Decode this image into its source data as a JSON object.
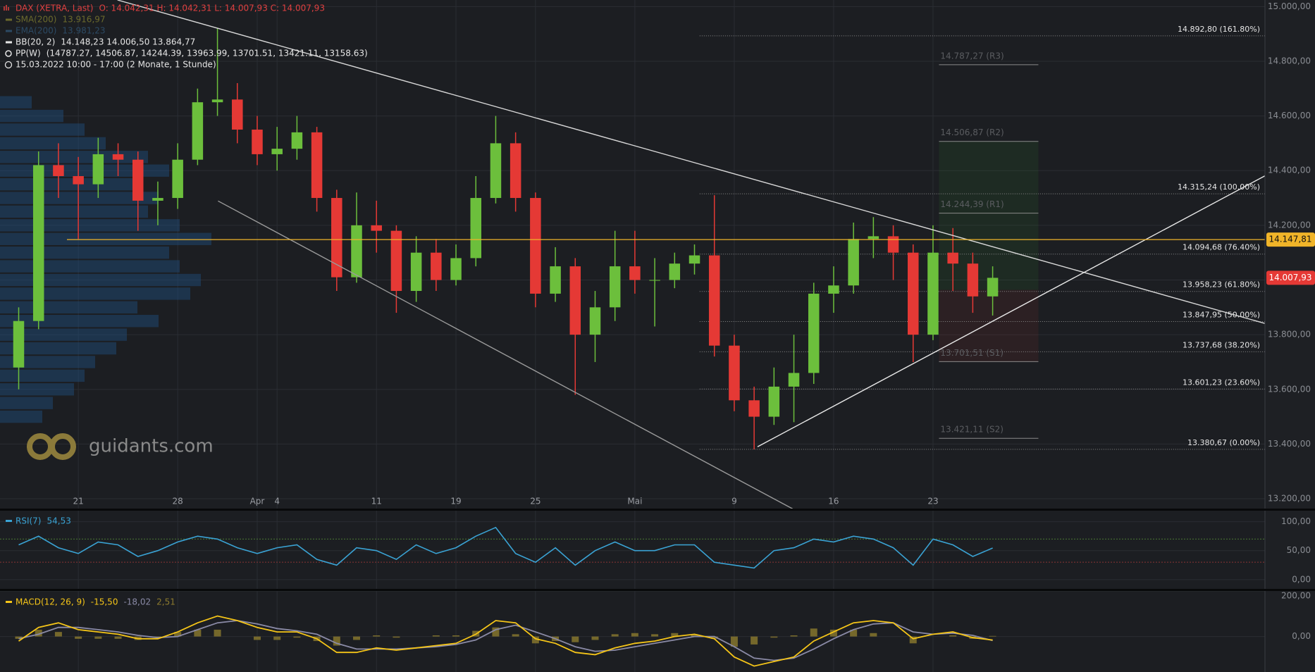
{
  "chart_data": [
    {
      "type": "candlestick",
      "title": "DAX (XETRA, Last)",
      "ohlc_label": "O: 14.042,31  H: 14.042,31  L: 14.007,93  C: 14.007,93",
      "legend": [
        {
          "name": "SMA(200)",
          "value": "13.916,97",
          "color": "#6b6a2c"
        },
        {
          "name": "EMA(200)",
          "value": "13.981,23",
          "color": "#2c4a64"
        },
        {
          "name": "BB(20, 2)",
          "value": "14.148,23  14.006,50  13.864,77",
          "color": "#e6e6e6"
        },
        {
          "name": "PP(W)",
          "value": "(14787.27, 14506.87, 14244.39, 13963.99, 13701.51, 13421.11, 13158.63)",
          "color": "#e6e6e6"
        }
      ],
      "info": "15.03.2022 10:00 - 17:00   (2 Monate, 1 Stunde)",
      "watermark": "guidants.com",
      "x": [
        -3,
        -2,
        -1,
        0,
        1,
        2,
        3,
        4,
        5,
        6,
        7,
        8,
        9,
        10,
        11,
        12,
        13,
        14,
        15,
        16,
        17,
        18,
        19,
        20,
        21,
        22,
        23,
        24,
        25,
        26,
        27,
        28,
        29,
        30,
        31,
        32,
        33,
        34,
        35,
        36,
        37,
        38,
        39,
        40,
        41,
        42,
        43,
        44,
        45,
        46
      ],
      "open": [
        13680,
        13850,
        14420,
        14380,
        14350,
        14460,
        14440,
        14290,
        14300,
        14440,
        14650,
        14660,
        14550,
        14460,
        14480,
        14540,
        14300,
        14010,
        14200,
        14180,
        13960,
        14100,
        14000,
        14080,
        14300,
        14500,
        14300,
        13950,
        14050,
        13800,
        13900,
        14050,
        14000,
        14000,
        14060,
        14090,
        13760,
        13560,
        13500,
        13610,
        13660,
        13950,
        13980,
        14150,
        14160,
        14100,
        13800,
        14100,
        14060,
        13940
      ],
      "high": [
        13900,
        14470,
        14500,
        14450,
        14520,
        14500,
        14470,
        14360,
        14500,
        14700,
        14920,
        14720,
        14600,
        14560,
        14600,
        14560,
        14330,
        14320,
        14290,
        14200,
        14160,
        14150,
        14130,
        14380,
        14600,
        14540,
        14320,
        14120,
        14080,
        13960,
        14180,
        14180,
        14080,
        14100,
        14130,
        14310,
        13800,
        13610,
        13680,
        13800,
        13990,
        14050,
        14210,
        14230,
        14200,
        14130,
        14200,
        14190,
        14100,
        14050
      ],
      "low": [
        13600,
        13820,
        14300,
        14150,
        14300,
        14380,
        14180,
        14200,
        14260,
        14420,
        14600,
        14500,
        14420,
        14400,
        14440,
        14250,
        13960,
        13990,
        14100,
        13880,
        13920,
        13960,
        13980,
        14050,
        14280,
        14250,
        13900,
        13920,
        13580,
        13700,
        13850,
        13950,
        13830,
        13970,
        14020,
        13720,
        13520,
        13380.67,
        13470,
        13480,
        13620,
        13880,
        13950,
        14080,
        14000,
        13700,
        13780,
        13960,
        13880,
        13870
      ],
      "close": [
        13850,
        14420,
        14380,
        14350,
        14460,
        14440,
        14290,
        14300,
        14440,
        14650,
        14660,
        14550,
        14460,
        14480,
        14540,
        14300,
        14010,
        14200,
        14180,
        13960,
        14100,
        14000,
        14080,
        14300,
        14500,
        14300,
        13950,
        14050,
        13800,
        13900,
        14050,
        14000,
        14000,
        14060,
        14090,
        13760,
        13560,
        13500,
        13610,
        13660,
        13950,
        13980,
        14150,
        14160,
        14100,
        13800,
        14100,
        14060,
        13940,
        14007.93
      ],
      "up_color": "#6cbf3c",
      "down_color": "#e53935",
      "xlim": [
        -3.94,
        59.7
      ],
      "xticks": [
        {
          "value": 0,
          "label": "21"
        },
        {
          "value": 5,
          "label": "28"
        },
        {
          "value": 9,
          "label": "Apr"
        },
        {
          "value": 10,
          "label": "4"
        },
        {
          "value": 15,
          "label": "11"
        },
        {
          "value": 19,
          "label": "19"
        },
        {
          "value": 23,
          "label": "25"
        },
        {
          "value": 28,
          "label": "Mai"
        },
        {
          "value": 33,
          "label": "9"
        },
        {
          "value": 38,
          "label": "16"
        },
        {
          "value": 43,
          "label": "23"
        }
      ],
      "ylim": [
        13164,
        15024
      ],
      "yticks": [
        {
          "value": 15000,
          "label": "15.000,00"
        },
        {
          "value": 14800,
          "label": "14.800,00"
        },
        {
          "value": 14600,
          "label": "14.600,00"
        },
        {
          "value": 14400,
          "label": "14.400,00"
        },
        {
          "value": 14200,
          "label": "14.200,00"
        },
        {
          "value": 14000,
          "label": "14.000,00"
        },
        {
          "value": 13800,
          "label": "13.800,00"
        },
        {
          "value": 13600,
          "label": "13.600,00"
        },
        {
          "value": 13400,
          "label": "13.400,00"
        },
        {
          "value": 13200,
          "label": "13.200,00"
        }
      ],
      "grid": true,
      "price_labels": [
        {
          "value": 14147.81,
          "label": "14.147,81",
          "color": "#f0b429",
          "text_color": "#111111",
          "line": true
        },
        {
          "value": 14007.93,
          "label": "14.007,93",
          "color": "#e53935",
          "text_color": "#ffffff",
          "line": false
        }
      ],
      "trendlines": [
        {
          "x": [
            1.97,
            59.7
          ],
          "y": [
            15024,
            13841
          ],
          "color": "#d8d8d8"
        },
        {
          "x": [
            7.03,
            35.94
          ],
          "y": [
            14289,
            13163
          ],
          "color": "#9a9a9a"
        },
        {
          "x": [
            34.17,
            59.7
          ],
          "y": [
            13390,
            14381
          ],
          "color": "#e8e8e8"
        }
      ],
      "fibonacci": {
        "x_start": 31.26,
        "levels": [
          {
            "value": 14892.8,
            "label": "14.892,80 (161.80%)"
          },
          {
            "value": 14315.24,
            "label": "14.315,24 (100.00%)"
          },
          {
            "value": 14094.68,
            "label": "14.094,68 (76.40%)"
          },
          {
            "value": 13958.23,
            "label": "13.958,23 (61.80%)"
          },
          {
            "value": 13847.95,
            "label": "13.847,95 (50.00%)"
          },
          {
            "value": 13737.68,
            "label": "13.737,68 (38.20%)"
          },
          {
            "value": 13601.23,
            "label": "13.601,23 (23.60%)"
          },
          {
            "value": 13380.67,
            "label": "13.380,67 (0.00%)"
          }
        ]
      },
      "pivots": {
        "x": [
          43.3,
          48.3
        ],
        "pp": 13963.99,
        "levels": [
          {
            "value": 14787.27,
            "label": "14.787,27 (R3)"
          },
          {
            "value": 14506.87,
            "label": "14.506,87 (R2)"
          },
          {
            "value": 14244.39,
            "label": "14.244,39 (R1)"
          },
          {
            "value": 13701.51,
            "label": "13.701,51 (S1)"
          },
          {
            "value": 13421.11,
            "label": "13.421,11 (S2)"
          }
        ]
      },
      "volume_profile": {
        "color": "#1f4f80",
        "prices": [
          13500,
          13550,
          13600,
          13650,
          13700,
          13750,
          13800,
          13850,
          13900,
          13950,
          14000,
          14050,
          14100,
          14150,
          14200,
          14250,
          14300,
          14350,
          14400,
          14450,
          14500,
          14550,
          14600,
          14650
        ],
        "values": [
          20,
          25,
          35,
          40,
          45,
          55,
          60,
          75,
          65,
          90,
          95,
          85,
          80,
          100,
          85,
          70,
          75,
          65,
          80,
          70,
          50,
          40,
          30,
          15
        ]
      }
    },
    {
      "type": "line",
      "x": [
        -3,
        -2,
        -1,
        0,
        1,
        2,
        3,
        4,
        5,
        6,
        7,
        8,
        9,
        10,
        11,
        12,
        13,
        14,
        15,
        16,
        17,
        18,
        19,
        20,
        21,
        22,
        23,
        24,
        25,
        26,
        27,
        28,
        29,
        30,
        31,
        32,
        33,
        34,
        35,
        36,
        37,
        38,
        39,
        40,
        41,
        42,
        43,
        44,
        45,
        46
      ],
      "xlim": [
        -3.94,
        59.7
      ],
      "series": [
        {
          "name": "RSI(7)",
          "legend_value": "54,53",
          "color": "#3aa3d4",
          "values": [
            60,
            75,
            55,
            45,
            65,
            60,
            40,
            50,
            65,
            75,
            70,
            55,
            45,
            55,
            60,
            35,
            25,
            55,
            50,
            35,
            60,
            45,
            55,
            75,
            90,
            45,
            30,
            55,
            25,
            50,
            65,
            50,
            50,
            60,
            60,
            30,
            25,
            20,
            50,
            55,
            70,
            65,
            75,
            70,
            55,
            25,
            70,
            60,
            40,
            54.53
          ]
        }
      ],
      "levels": [
        {
          "value": 70,
          "color": "#4d7a34"
        },
        {
          "value": 30,
          "color": "#8a3535"
        }
      ],
      "ylim": [
        -16,
        119
      ],
      "yticks": [
        {
          "value": 100,
          "label": "100,00"
        },
        {
          "value": 50,
          "label": "50,00"
        },
        {
          "value": 0,
          "label": "0,00"
        }
      ]
    },
    {
      "type": "combo",
      "legend_label": "MACD(12, 26, 9)",
      "x": [
        -3,
        -2,
        -1,
        0,
        1,
        2,
        3,
        4,
        5,
        6,
        7,
        8,
        9,
        10,
        11,
        12,
        13,
        14,
        15,
        16,
        17,
        18,
        19,
        20,
        21,
        22,
        23,
        24,
        25,
        26,
        27,
        28,
        29,
        30,
        31,
        32,
        33,
        34,
        35,
        36,
        37,
        38,
        39,
        40,
        41,
        42,
        43,
        44,
        45,
        46
      ],
      "xlim": [
        -3.94,
        59.7
      ],
      "series": [
        {
          "kind": "bar",
          "color": "#8c7a2e",
          "legend_value": "2,51",
          "values": [
            -10,
            30,
            20,
            -10,
            -10,
            -10,
            -15,
            -5,
            20,
            30,
            30,
            0,
            -15,
            -15,
            -5,
            -20,
            -40,
            -15,
            5,
            -5,
            0,
            5,
            5,
            25,
            40,
            10,
            -30,
            -20,
            -25,
            -15,
            10,
            15,
            10,
            15,
            10,
            -10,
            -45,
            -35,
            -5,
            5,
            35,
            30,
            30,
            15,
            0,
            -30,
            0,
            5,
            -10,
            2.51
          ]
        },
        {
          "kind": "line",
          "color": "#8a8aa6",
          "legend_value": "-18,02",
          "values": [
            -10,
            10,
            40,
            40,
            30,
            20,
            5,
            -5,
            0,
            30,
            60,
            70,
            55,
            35,
            25,
            10,
            -30,
            -55,
            -55,
            -55,
            -50,
            -45,
            -35,
            -15,
            30,
            50,
            20,
            -10,
            -45,
            -65,
            -60,
            -45,
            -30,
            -15,
            0,
            0,
            -45,
            -95,
            -105,
            -95,
            -55,
            -10,
            30,
            55,
            60,
            20,
            10,
            15,
            5,
            -18.02
          ]
        },
        {
          "kind": "line",
          "color": "#f5c518",
          "legend_value": "-15,50",
          "values": [
            -20,
            40,
            60,
            30,
            20,
            10,
            -10,
            -10,
            20,
            60,
            90,
            70,
            40,
            20,
            20,
            -10,
            -70,
            -70,
            -50,
            -60,
            -50,
            -40,
            -30,
            10,
            70,
            60,
            -10,
            -30,
            -70,
            -80,
            -50,
            -30,
            -20,
            0,
            10,
            -10,
            -90,
            -130,
            -110,
            -90,
            -20,
            20,
            60,
            70,
            60,
            -10,
            10,
            20,
            -5,
            -15.5
          ]
        }
      ],
      "ylim": [
        -156,
        200
      ],
      "yticks": [
        {
          "value": 200,
          "label": "200,00"
        },
        {
          "value": 0,
          "label": "0,00"
        }
      ]
    }
  ]
}
